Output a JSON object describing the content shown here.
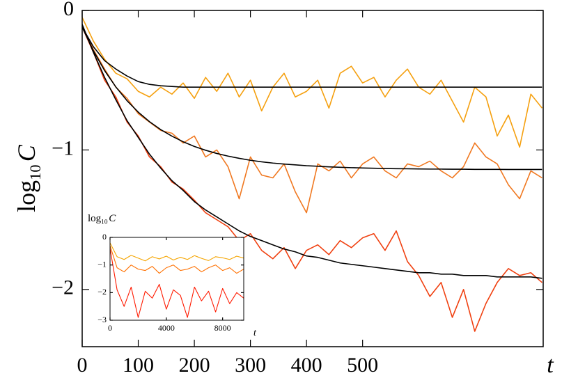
{
  "chart_data": [
    {
      "type": "line",
      "x_label": "t",
      "y_label": [
        "log",
        "10",
        "C"
      ],
      "xlim": [
        0,
        822
      ],
      "ylim": [
        -2.41,
        0
      ],
      "xticks": [
        0,
        100,
        200,
        300,
        400,
        500
      ],
      "yticks": [
        0,
        {
          "value": -1,
          "label": "−1"
        },
        {
          "value": -2,
          "label": "−2"
        }
      ],
      "x": [
        0,
        20,
        40,
        60,
        80,
        100,
        120,
        140,
        160,
        180,
        200,
        220,
        240,
        260,
        280,
        300,
        320,
        340,
        360,
        380,
        400,
        420,
        440,
        460,
        480,
        500,
        520,
        540,
        560,
        580,
        600,
        620,
        640,
        660,
        680,
        700,
        720,
        740,
        760,
        780,
        800,
        820
      ],
      "series": [
        {
          "color": "#f5a00f",
          "values": [
            -0.05,
            -0.22,
            -0.35,
            -0.45,
            -0.49,
            -0.58,
            -0.62,
            -0.55,
            -0.6,
            -0.52,
            -0.63,
            -0.48,
            -0.58,
            -0.45,
            -0.62,
            -0.5,
            -0.72,
            -0.55,
            -0.45,
            -0.62,
            -0.58,
            -0.5,
            -0.7,
            -0.45,
            -0.4,
            -0.52,
            -0.48,
            -0.62,
            -0.5,
            -0.42,
            -0.55,
            -0.6,
            -0.5,
            -0.65,
            -0.8,
            -0.55,
            -0.62,
            -0.9,
            -0.75,
            -0.98,
            -0.6,
            -0.7
          ]
        },
        {
          "color": "#f07820",
          "values": [
            -0.12,
            -0.28,
            -0.42,
            -0.55,
            -0.63,
            -0.74,
            -0.8,
            -0.86,
            -0.88,
            -0.95,
            -0.9,
            -1.05,
            -1.0,
            -1.12,
            -1.35,
            -1.05,
            -1.18,
            -1.2,
            -1.1,
            -1.3,
            -1.45,
            -1.1,
            -1.15,
            -1.08,
            -1.2,
            -1.1,
            -1.05,
            -1.15,
            -1.2,
            -1.1,
            -1.12,
            -1.08,
            -1.15,
            -1.2,
            -1.12,
            -0.95,
            -1.05,
            -1.1,
            -1.25,
            -1.35,
            -1.15,
            -1.2
          ]
        },
        {
          "color": "#f04010",
          "values": [
            -0.12,
            -0.3,
            -0.5,
            -0.62,
            -0.8,
            -0.9,
            -1.05,
            -1.12,
            -1.23,
            -1.28,
            -1.36,
            -1.45,
            -1.5,
            -1.55,
            -1.65,
            -1.6,
            -1.72,
            -1.78,
            -1.7,
            -1.85,
            -1.72,
            -1.68,
            -1.75,
            -1.65,
            -1.7,
            -1.63,
            -1.6,
            -1.72,
            -1.58,
            -1.8,
            -1.9,
            -2.05,
            -1.95,
            -2.2,
            -2.0,
            -2.3,
            -2.1,
            -1.95,
            -1.85,
            -1.9,
            -1.88,
            -1.95
          ]
        },
        {
          "color": "#000000",
          "values": [
            -0.12,
            -0.26,
            -0.36,
            -0.42,
            -0.47,
            -0.51,
            -0.53,
            -0.54,
            -0.545,
            -0.55,
            -0.55,
            -0.55,
            -0.55,
            -0.55,
            -0.55,
            -0.55,
            -0.55,
            -0.55,
            -0.55,
            -0.55,
            -0.55,
            -0.55,
            -0.55,
            -0.55,
            -0.55,
            -0.55,
            -0.55,
            -0.55,
            -0.55,
            -0.55,
            -0.55,
            -0.55,
            -0.55,
            -0.55,
            -0.55,
            -0.55,
            -0.55,
            -0.55,
            -0.55,
            -0.55,
            -0.55,
            -0.55
          ]
        },
        {
          "color": "#000000",
          "values": [
            -0.12,
            -0.289,
            -0.431,
            -0.548,
            -0.647,
            -0.729,
            -0.797,
            -0.854,
            -0.901,
            -0.941,
            -0.975,
            -1.002,
            -1.025,
            -1.044,
            -1.06,
            -1.074,
            -1.085,
            -1.094,
            -1.101,
            -1.107,
            -1.113,
            -1.117,
            -1.121,
            -1.124,
            -1.127,
            -1.129,
            -1.131,
            -1.133,
            -1.134,
            -1.135,
            -1.136,
            -1.137,
            -1.137,
            -1.138,
            -1.138,
            -1.139,
            -1.139,
            -1.139,
            -1.14,
            -1.14,
            -1.14,
            -1.14
          ]
        },
        {
          "color": "#000000",
          "values": [
            -0.1,
            -0.3,
            -0.48,
            -0.64,
            -0.79,
            -0.91,
            -1.03,
            -1.13,
            -1.22,
            -1.29,
            -1.37,
            -1.43,
            -1.48,
            -1.53,
            -1.58,
            -1.62,
            -1.65,
            -1.68,
            -1.71,
            -1.73,
            -1.76,
            -1.77,
            -1.79,
            -1.81,
            -1.82,
            -1.83,
            -1.84,
            -1.85,
            -1.86,
            -1.87,
            -1.88,
            -1.88,
            -1.89,
            -1.89,
            -1.9,
            -1.9,
            -1.9,
            -1.91,
            -1.91,
            -1.91,
            -1.91,
            -1.92
          ]
        }
      ]
    },
    {
      "type": "line",
      "x_label": "t",
      "y_label": [
        "log",
        "10",
        "C"
      ],
      "xlim": [
        0,
        9500
      ],
      "ylim": [
        -3,
        0
      ],
      "xticks": [
        0,
        4000,
        8000
      ],
      "yticks": [
        0,
        {
          "value": -1,
          "label": "−1"
        },
        {
          "value": -2,
          "label": "−2"
        },
        {
          "value": -3,
          "label": "−3"
        }
      ],
      "x": [
        0,
        500,
        1000,
        1500,
        2000,
        2500,
        3000,
        3500,
        4000,
        4500,
        5000,
        5500,
        6000,
        6500,
        7000,
        7500,
        8000,
        8500,
        9000,
        9500
      ],
      "series": [
        {
          "color": "#f5a500",
          "values": [
            -0.2,
            -0.7,
            -0.8,
            -0.65,
            -0.75,
            -0.85,
            -0.7,
            -0.78,
            -0.68,
            -0.82,
            -0.72,
            -0.8,
            -0.66,
            -0.76,
            -0.84,
            -0.7,
            -0.74,
            -0.8,
            -0.68,
            -0.75
          ]
        },
        {
          "color": "#ff7000",
          "values": [
            -0.3,
            -1.1,
            -1.25,
            -1.0,
            -1.15,
            -1.2,
            -1.05,
            -1.3,
            -1.1,
            -1.0,
            -1.2,
            -1.15,
            -1.05,
            -1.25,
            -1.1,
            -1.0,
            -1.2,
            -1.1,
            -1.3,
            -1.15
          ]
        },
        {
          "color": "#ff1a00",
          "values": [
            -0.4,
            -1.9,
            -2.5,
            -1.8,
            -2.9,
            -1.95,
            -2.2,
            -1.7,
            -2.6,
            -1.9,
            -2.1,
            -2.9,
            -1.8,
            -2.3,
            -1.95,
            -2.7,
            -1.85,
            -2.4,
            -2.0,
            -2.2
          ]
        }
      ]
    }
  ]
}
